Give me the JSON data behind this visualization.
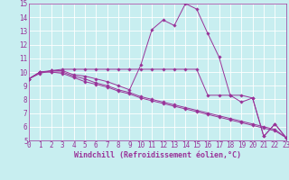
{
  "xlabel": "Windchill (Refroidissement éolien,°C)",
  "background_color": "#c8eef0",
  "line_color": "#993399",
  "grid_color": "#ffffff",
  "xmin": 0,
  "xmax": 23,
  "ymin": 5,
  "ymax": 15,
  "series": [
    {
      "x": [
        0,
        1,
        2,
        3,
        4,
        5,
        6,
        7,
        8,
        9,
        10,
        11,
        12,
        13,
        14,
        15,
        16,
        17,
        18,
        19,
        20,
        21,
        22,
        23
      ],
      "y": [
        9.5,
        10.0,
        10.1,
        10.1,
        9.8,
        9.7,
        9.5,
        9.3,
        9.0,
        8.7,
        10.5,
        13.1,
        13.8,
        13.4,
        15.0,
        14.6,
        12.8,
        11.1,
        8.3,
        7.8,
        8.1,
        5.3,
        6.2,
        5.2
      ]
    },
    {
      "x": [
        0,
        1,
        2,
        3,
        4,
        5,
        6,
        7,
        8,
        9,
        10,
        11,
        12,
        13,
        14,
        15,
        16,
        17,
        18,
        19,
        20,
        21,
        22,
        23
      ],
      "y": [
        9.5,
        10.0,
        10.0,
        10.0,
        9.7,
        9.5,
        9.2,
        9.0,
        8.7,
        8.5,
        8.2,
        8.0,
        7.8,
        7.6,
        7.4,
        7.2,
        7.0,
        6.8,
        6.6,
        6.4,
        6.2,
        6.0,
        5.8,
        5.2
      ]
    },
    {
      "x": [
        0,
        1,
        2,
        3,
        4,
        5,
        6,
        7,
        8,
        9,
        10,
        11,
        12,
        13,
        14,
        15,
        16,
        17,
        18,
        19,
        20,
        21,
        22,
        23
      ],
      "y": [
        9.5,
        10.0,
        10.0,
        9.9,
        9.6,
        9.3,
        9.1,
        8.9,
        8.6,
        8.4,
        8.1,
        7.9,
        7.7,
        7.5,
        7.3,
        7.1,
        6.9,
        6.7,
        6.5,
        6.3,
        6.1,
        5.9,
        5.7,
        5.2
      ]
    },
    {
      "x": [
        0,
        1,
        2,
        3,
        4,
        5,
        6,
        7,
        8,
        9,
        10,
        11,
        12,
        13,
        14,
        15,
        16,
        17,
        18,
        19,
        20,
        21,
        22,
        23
      ],
      "y": [
        9.5,
        9.9,
        10.1,
        10.2,
        10.2,
        10.2,
        10.2,
        10.2,
        10.2,
        10.2,
        10.2,
        10.2,
        10.2,
        10.2,
        10.2,
        10.2,
        8.3,
        8.3,
        8.3,
        8.3,
        8.1,
        5.3,
        6.2,
        5.2
      ]
    }
  ],
  "xticks": [
    0,
    1,
    2,
    3,
    4,
    5,
    6,
    7,
    8,
    9,
    10,
    11,
    12,
    13,
    14,
    15,
    16,
    17,
    18,
    19,
    20,
    21,
    22,
    23
  ],
  "yticks": [
    5,
    6,
    7,
    8,
    9,
    10,
    11,
    12,
    13,
    14,
    15
  ],
  "tick_fontsize": 5.5,
  "xlabel_fontsize": 6.0,
  "marker": "D",
  "markersize": 1.8,
  "linewidth": 0.7
}
